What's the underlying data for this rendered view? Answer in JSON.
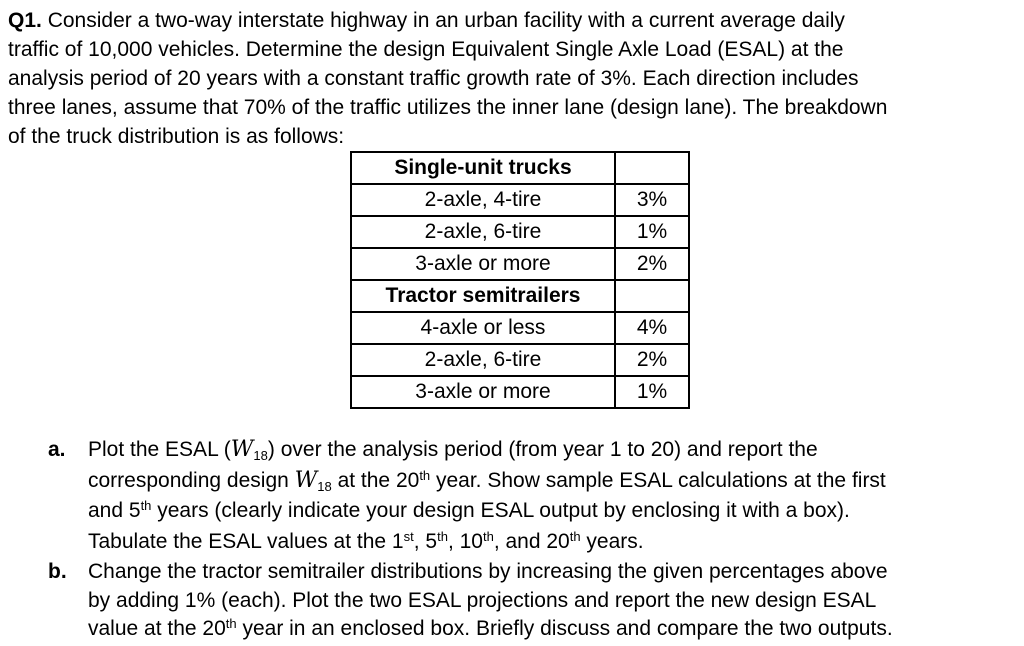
{
  "page": {
    "background": "#ffffff",
    "text_color": "#000000"
  },
  "question": {
    "lines": [
      [
        {
          "t": "Q1.",
          "s": "b"
        },
        {
          "t": " Consider a two-way interstate highway in an urban facility with a current average daily"
        }
      ],
      [
        {
          "t": "traffic of 10,000 vehicles. Determine the design Equivalent Single Axle Load (ESAL) at the"
        }
      ],
      [
        {
          "t": "analysis period of 20 years with a constant traffic growth rate of 3%. Each direction includes"
        }
      ],
      [
        {
          "t": "three lanes, assume that 70% of the traffic utilizes the inner lane (design lane). The breakdown"
        }
      ],
      [
        {
          "t": "of the truck distribution is as follows:"
        }
      ]
    ]
  },
  "table": {
    "sections": [
      {
        "header": "Single-unit trucks",
        "header_value": "",
        "rows": [
          {
            "label": "2-axle, 4-tire",
            "value": "3%"
          },
          {
            "label": "2-axle, 6-tire",
            "value": "1%"
          },
          {
            "label": "3-axle or more",
            "value": "2%"
          }
        ]
      },
      {
        "header": "Tractor semitrailers",
        "header_value": "",
        "rows": [
          {
            "label": "4-axle or less",
            "value": "4%"
          },
          {
            "label": "2-axle, 6-tire",
            "value": "2%"
          },
          {
            "label": "3-axle or more",
            "value": "1%"
          }
        ]
      }
    ]
  },
  "items": [
    {
      "label": "a.",
      "lines": [
        [
          {
            "t": "Plot the ESAL ("
          },
          {
            "t": "W",
            "s": "mi"
          },
          {
            "t": "18",
            "s": "sub"
          },
          {
            "t": ") over the analysis period (from year 1 to 20) and report the"
          }
        ],
        [
          {
            "t": "corresponding design "
          },
          {
            "t": "W",
            "s": "mi"
          },
          {
            "t": "18",
            "s": "sub"
          },
          {
            "t": " at the 20"
          },
          {
            "t": "th",
            "s": "sup"
          },
          {
            "t": " year. Show sample ESAL calculations at the first"
          }
        ],
        [
          {
            "t": "and 5"
          },
          {
            "t": "th",
            "s": "sup"
          },
          {
            "t": " years (clearly indicate your design ESAL output by enclosing it with a box)."
          }
        ],
        [
          {
            "t": "Tabulate the ESAL values at the 1"
          },
          {
            "t": "st",
            "s": "sup"
          },
          {
            "t": ", 5"
          },
          {
            "t": "th",
            "s": "sup"
          },
          {
            "t": ", 10"
          },
          {
            "t": "th",
            "s": "sup"
          },
          {
            "t": ", and 20"
          },
          {
            "t": "th",
            "s": "sup"
          },
          {
            "t": " years."
          }
        ]
      ]
    },
    {
      "label": "b.",
      "lines": [
        [
          {
            "t": "Change the tractor semitrailer distributions by increasing the given percentages above"
          }
        ],
        [
          {
            "t": "by adding 1% (each). Plot the two ESAL projections and report the new design ESAL"
          }
        ],
        [
          {
            "t": "value at the 20"
          },
          {
            "t": "th",
            "s": "sup"
          },
          {
            "t": " year in an enclosed box. Briefly discuss and compare the two outputs."
          }
        ]
      ]
    }
  ]
}
